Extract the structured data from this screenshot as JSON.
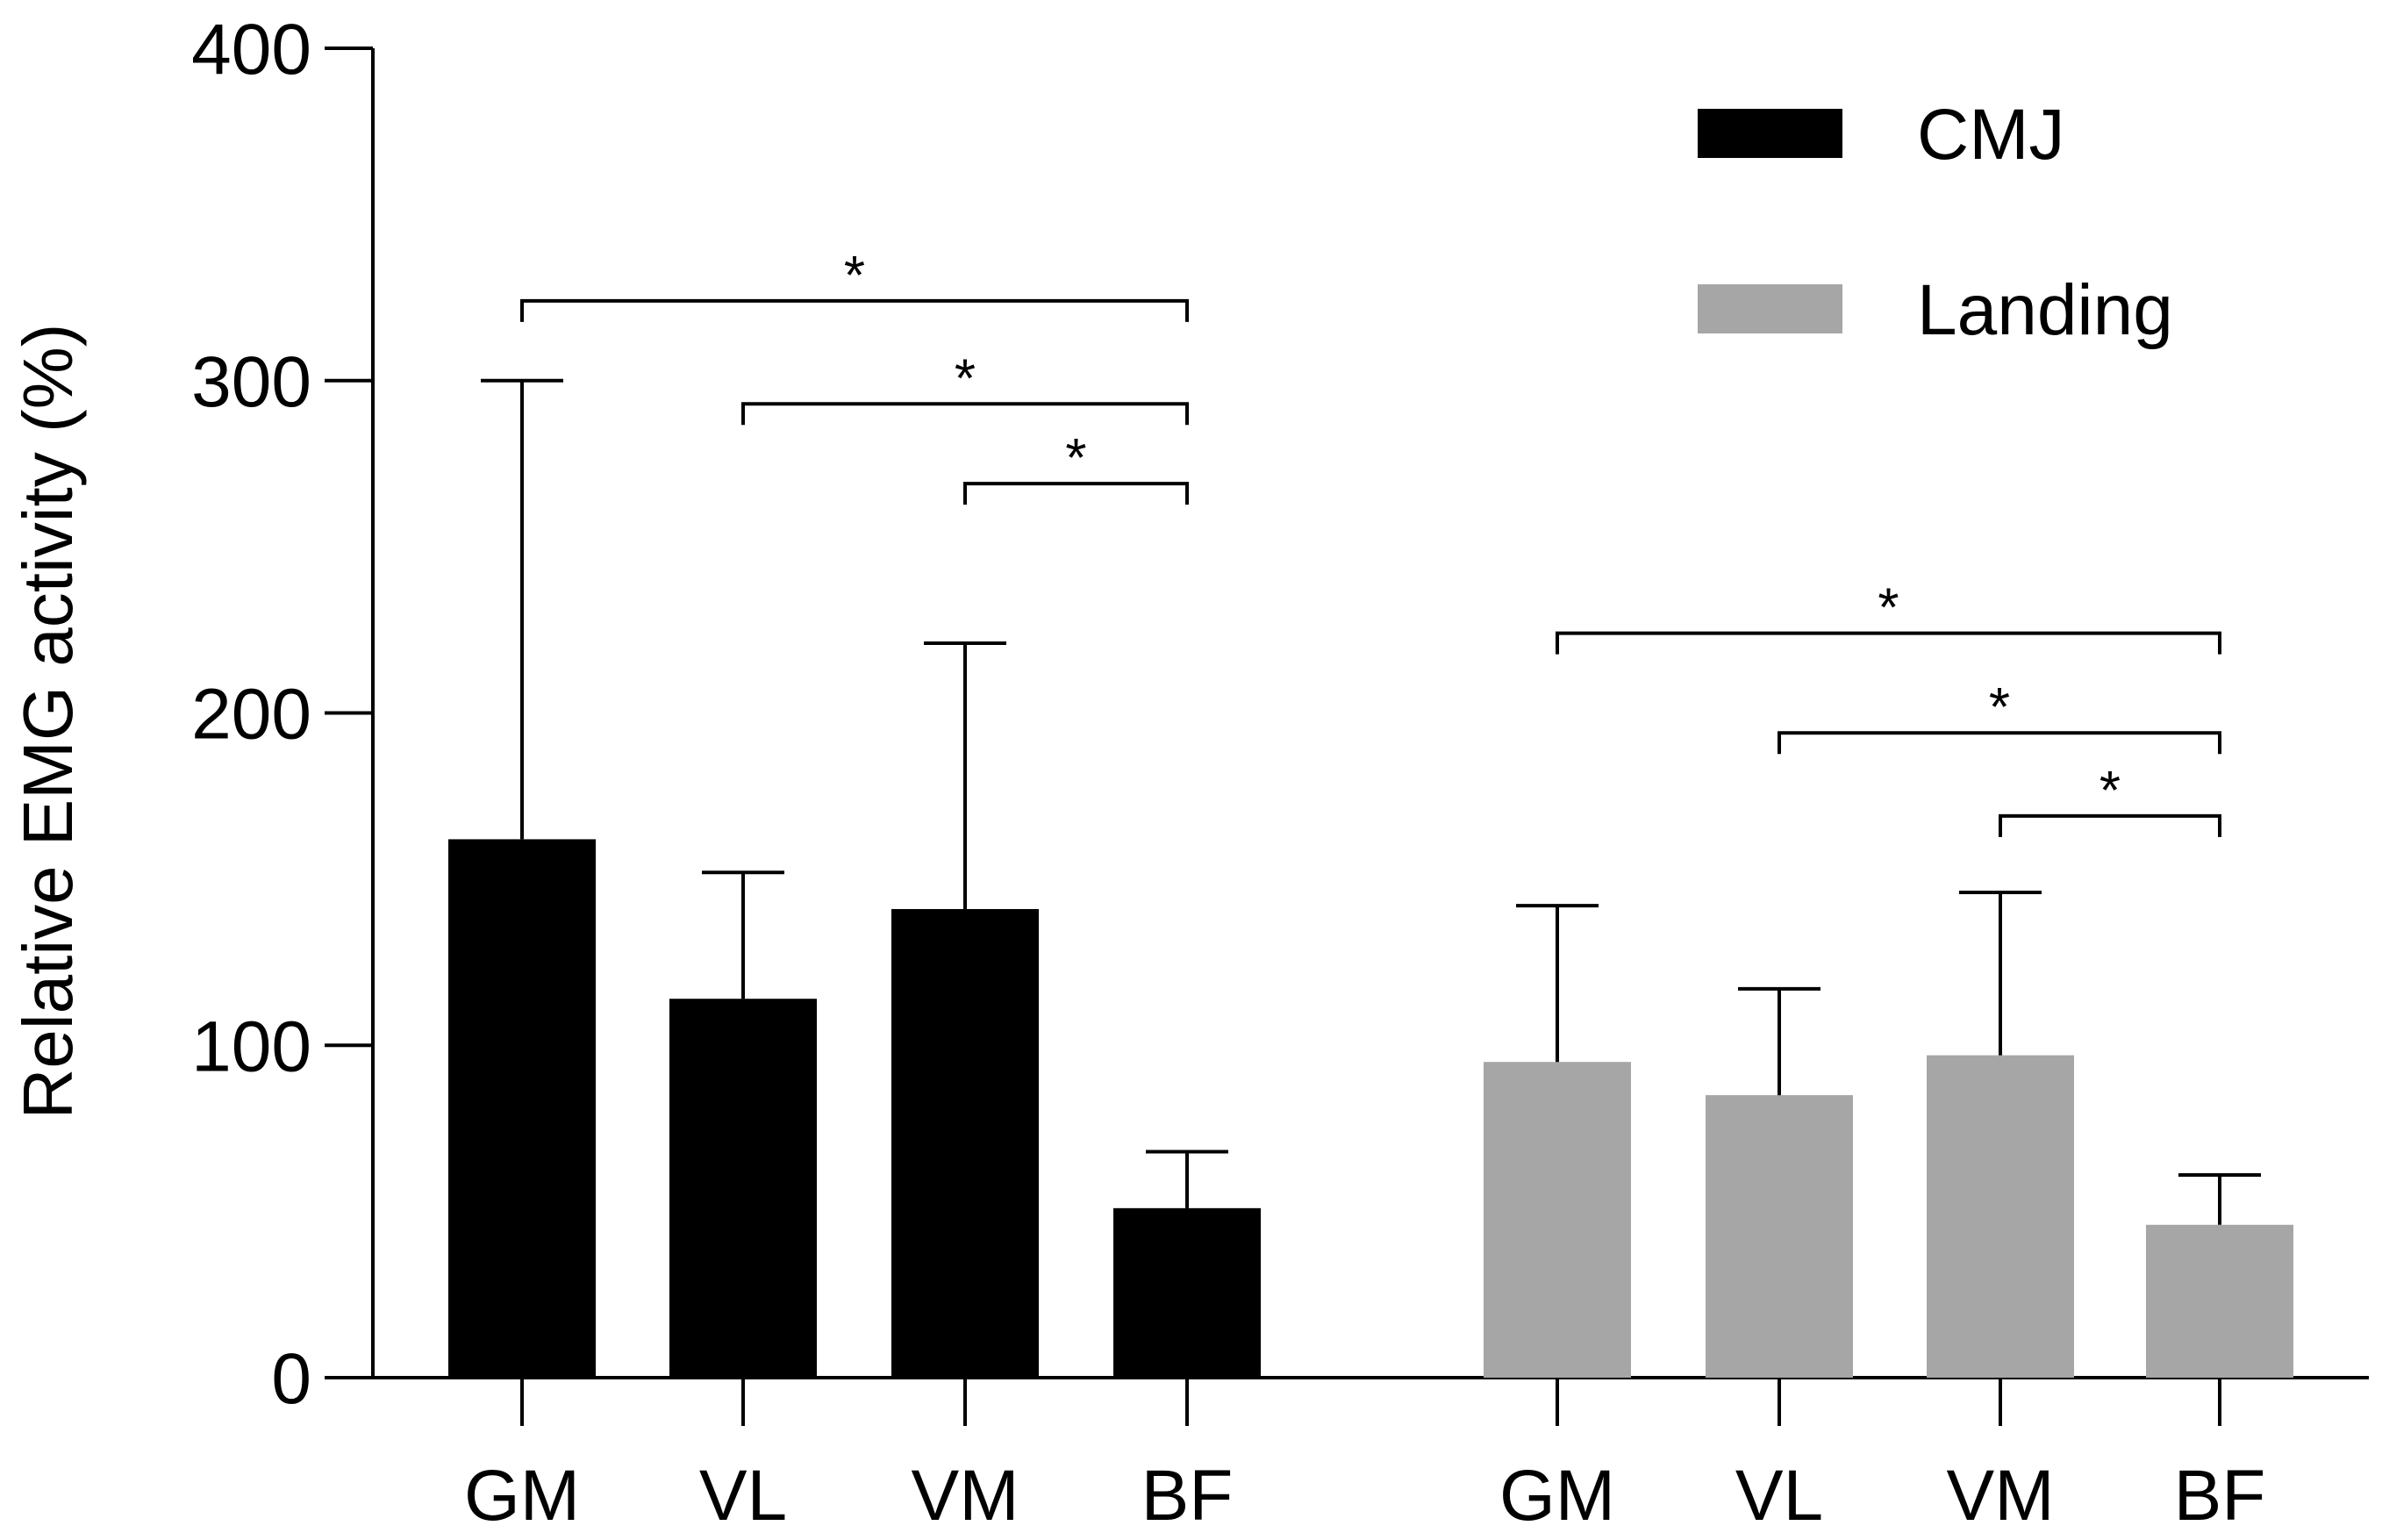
{
  "chart_data": {
    "type": "bar",
    "title": "",
    "xlabel": "",
    "ylabel": "Relative EMG activity (%)",
    "ylim": [
      0,
      400
    ],
    "yticks": [
      0,
      100,
      200,
      300,
      400
    ],
    "ytick_labels": [
      "0",
      "100",
      "200",
      "300",
      "400"
    ],
    "grid": false,
    "legend_position": "top-right",
    "series": [
      {
        "name": "CMJ",
        "color": "#000000",
        "categories": [
          "GM",
          "VL",
          "VM",
          "BF"
        ],
        "values": [
          162,
          114,
          141,
          51
        ],
        "error_upper": [
          300,
          152,
          221,
          68
        ]
      },
      {
        "name": "Landing",
        "color": "#a6a6a6",
        "categories": [
          "GM",
          "VL",
          "VM",
          "BF"
        ],
        "values": [
          95,
          85,
          97,
          46
        ],
        "error_upper": [
          142,
          117,
          146,
          61
        ]
      }
    ],
    "significance": [
      {
        "series": 0,
        "from": 0,
        "to": 3,
        "y": 324,
        "label": "*"
      },
      {
        "series": 0,
        "from": 1,
        "to": 3,
        "y": 293,
        "label": "*"
      },
      {
        "series": 0,
        "from": 2,
        "to": 3,
        "y": 269,
        "label": "*"
      },
      {
        "series": 1,
        "from": 0,
        "to": 3,
        "y": 224,
        "label": "*"
      },
      {
        "series": 1,
        "from": 1,
        "to": 3,
        "y": 194,
        "label": "*"
      },
      {
        "series": 1,
        "from": 2,
        "to": 3,
        "y": 169,
        "label": "*"
      }
    ]
  }
}
